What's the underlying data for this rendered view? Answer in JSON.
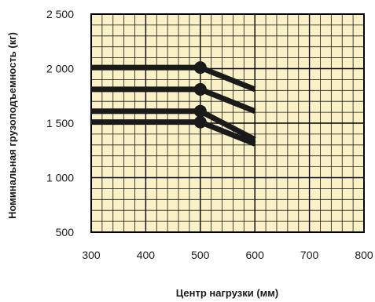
{
  "chart_data": {
    "type": "line",
    "xlabel": "Центр нагрузки (мм)",
    "ylabel": "Номинальная грузоподъемность (кг)",
    "xlim": [
      300,
      800
    ],
    "ylim": [
      500,
      2500
    ],
    "x_ticks": [
      300,
      400,
      500,
      600,
      700,
      800
    ],
    "y_ticks": [
      500,
      1000,
      1500,
      2000,
      2500
    ],
    "x_tick_labels": [
      "300",
      "400",
      "500",
      "600",
      "700",
      "800"
    ],
    "y_tick_labels": [
      "500",
      "1 000",
      "1 500",
      "2 000",
      "2 500"
    ],
    "grid": true,
    "grid_minor_x_step": 20,
    "grid_minor_y_step": 100,
    "series": [
      {
        "x": [
          300,
          500,
          600
        ],
        "y": [
          2010,
          2010,
          1810
        ]
      },
      {
        "x": [
          300,
          500,
          600
        ],
        "y": [
          1810,
          1810,
          1610
        ]
      },
      {
        "x": [
          300,
          500,
          600
        ],
        "y": [
          1610,
          1610,
          1350
        ]
      },
      {
        "x": [
          300,
          500,
          600
        ],
        "y": [
          1510,
          1510,
          1310
        ]
      }
    ],
    "markers": [
      {
        "x": 500,
        "y": 2010
      },
      {
        "x": 500,
        "y": 1810
      },
      {
        "x": 500,
        "y": 1610
      },
      {
        "x": 500,
        "y": 1510
      }
    ]
  },
  "colors": {
    "plot_background": "#fbf1c6",
    "grid_minor": "#1a1a1a",
    "grid_major": "#000000",
    "series": "#1a1a1a",
    "text": "#1a1a1a"
  }
}
